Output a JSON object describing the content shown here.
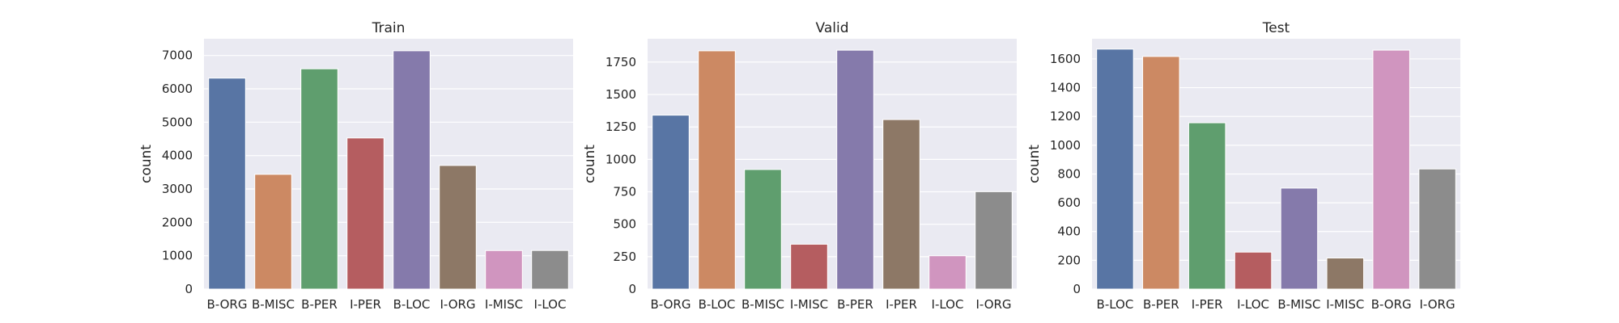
{
  "chart_data": [
    {
      "type": "bar",
      "title": "Train",
      "xlabel": "",
      "ylabel": "count",
      "ylim": [
        0,
        7500
      ],
      "yticks": [
        0,
        1000,
        2000,
        3000,
        4000,
        5000,
        6000,
        7000
      ],
      "grid": true,
      "categories": [
        "B-ORG",
        "B-MISC",
        "B-PER",
        "I-PER",
        "B-LOC",
        "I-ORG",
        "I-MISC",
        "I-LOC"
      ],
      "values": [
        6321,
        3438,
        6600,
        4528,
        7140,
        3704,
        1155,
        1157
      ],
      "colors": [
        "#5875a4",
        "#cc8963",
        "#5f9e6e",
        "#b55d60",
        "#857aab",
        "#8d7866",
        "#d095bf",
        "#8c8c8c"
      ]
    },
    {
      "type": "bar",
      "title": "Valid",
      "xlabel": "",
      "ylabel": "count",
      "ylim": [
        0,
        1930
      ],
      "yticks": [
        0,
        250,
        500,
        750,
        1000,
        1250,
        1500,
        1750
      ],
      "grid": true,
      "categories": [
        "B-ORG",
        "B-LOC",
        "B-MISC",
        "I-MISC",
        "B-PER",
        "I-PER",
        "I-LOC",
        "I-ORG"
      ],
      "values": [
        1341,
        1837,
        922,
        346,
        1842,
        1307,
        257,
        751
      ],
      "colors": [
        "#5875a4",
        "#cc8963",
        "#5f9e6e",
        "#b55d60",
        "#857aab",
        "#8d7866",
        "#d095bf",
        "#8c8c8c"
      ]
    },
    {
      "type": "bar",
      "title": "Test",
      "xlabel": "",
      "ylabel": "count",
      "ylim": [
        0,
        1740
      ],
      "yticks": [
        0,
        200,
        400,
        600,
        800,
        1000,
        1200,
        1400,
        1600
      ],
      "grid": true,
      "categories": [
        "B-LOC",
        "B-PER",
        "I-PER",
        "I-LOC",
        "B-MISC",
        "I-MISC",
        "B-ORG",
        "I-ORG"
      ],
      "values": [
        1668,
        1617,
        1156,
        257,
        702,
        216,
        1661,
        835
      ],
      "colors": [
        "#5875a4",
        "#cc8963",
        "#5f9e6e",
        "#b55d60",
        "#857aab",
        "#8d7866",
        "#d095bf",
        "#8c8c8c"
      ]
    }
  ]
}
